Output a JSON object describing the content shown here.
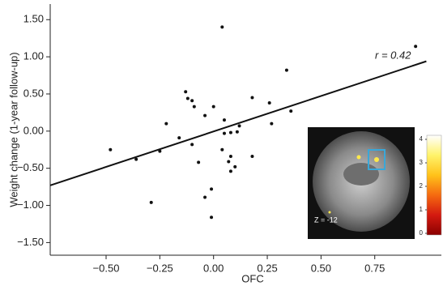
{
  "chart_data": {
    "type": "scatter",
    "x_label": "OFC",
    "y_label": "Weight change (1-year follow-up)",
    "annotation": "r = 0.42",
    "inset_label": "Z = -12",
    "color": "#111111",
    "x": [
      -0.48,
      -0.36,
      -0.29,
      -0.25,
      -0.22,
      -0.16,
      -0.12,
      -0.13,
      -0.1,
      -0.09,
      -0.1,
      -0.07,
      -0.04,
      -0.04,
      -0.01,
      -0.01,
      0.0,
      0.04,
      0.05,
      0.05,
      0.04,
      0.07,
      0.08,
      0.08,
      0.1,
      0.11,
      0.08,
      0.12,
      0.18,
      0.18,
      0.26,
      0.27,
      0.34,
      0.36,
      0.94
    ],
    "y": [
      -0.25,
      -0.38,
      -0.96,
      -0.27,
      0.1,
      -0.09,
      0.44,
      0.53,
      0.41,
      0.33,
      -0.18,
      -0.42,
      0.21,
      -0.89,
      -0.78,
      -1.16,
      0.33,
      1.4,
      0.15,
      -0.03,
      -0.25,
      -0.41,
      -0.54,
      -0.02,
      -0.48,
      -0.01,
      -0.34,
      0.07,
      0.45,
      -0.34,
      0.38,
      0.1,
      0.82,
      0.27,
      1.14
    ],
    "fit_line": {
      "x": [
        -0.76,
        0.99
      ],
      "y": [
        -0.73,
        0.94
      ]
    },
    "xlim": [
      -0.76,
      1.06
    ],
    "ylim": [
      -1.67,
      1.71
    ],
    "xticks": [
      {
        "value": -0.5,
        "label": "−0.50"
      },
      {
        "value": -0.25,
        "label": "−0.25"
      },
      {
        "value": 0,
        "label": "0.00"
      },
      {
        "value": 0.25,
        "label": "0.25"
      },
      {
        "value": 0.5,
        "label": "0.50"
      },
      {
        "value": 0.75,
        "label": "0.75"
      }
    ],
    "yticks": [
      {
        "value": 1.5,
        "label": "1.50"
      },
      {
        "value": 1,
        "label": "1.00"
      },
      {
        "value": 0.5,
        "label": "0.50"
      },
      {
        "value": 0,
        "label": "0.00"
      },
      {
        "value": -0.5,
        "label": "−0.50"
      },
      {
        "value": -1,
        "label": "−1.00"
      },
      {
        "value": -1.5,
        "label": "−1.50"
      }
    ],
    "colorbar": {
      "lim": [
        0,
        4.2
      ],
      "ticks": [
        0,
        1,
        2,
        3,
        4
      ]
    }
  }
}
